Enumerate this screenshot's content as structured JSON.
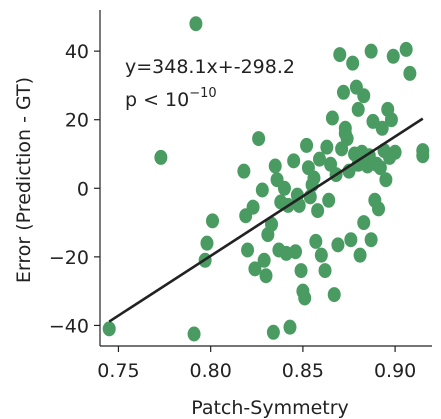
{
  "chart_data": {
    "type": "scatter",
    "xlabel": "Patch-Symmetry",
    "ylabel": "Error (Prediction - GT)",
    "xlim": [
      0.74,
      0.92
    ],
    "ylim": [
      -46,
      52
    ],
    "xticks": [
      0.75,
      0.8,
      0.85,
      0.9
    ],
    "xtick_labels": [
      "0.75",
      "0.80",
      "0.85",
      "0.90"
    ],
    "yticks": [
      -40,
      -20,
      0,
      20,
      40
    ],
    "ytick_labels": [
      "−40",
      "−20",
      "0",
      "20",
      "40"
    ],
    "grid": false,
    "annotation": {
      "equation": "y=348.1x+-298.2",
      "pvalue_text": "p < 10",
      "pvalue_exp": "−10"
    },
    "point_color": "#4a9b62",
    "line_color": "#222222",
    "fit_line": {
      "slope": 348.1,
      "intercept": -298.2,
      "x_range": [
        0.745,
        0.915
      ]
    },
    "points": [
      [
        0.745,
        -41
      ],
      [
        0.773,
        9
      ],
      [
        0.792,
        48
      ],
      [
        0.791,
        -42.5
      ],
      [
        0.797,
        -21
      ],
      [
        0.798,
        -16
      ],
      [
        0.801,
        -9.5
      ],
      [
        0.818,
        5
      ],
      [
        0.819,
        -8
      ],
      [
        0.82,
        -18
      ],
      [
        0.823,
        -5.5
      ],
      [
        0.824,
        -23.5
      ],
      [
        0.826,
        14.5
      ],
      [
        0.828,
        -0.5
      ],
      [
        0.829,
        -21
      ],
      [
        0.83,
        -25.5
      ],
      [
        0.831,
        -13.5
      ],
      [
        0.833,
        -10.5
      ],
      [
        0.834,
        -42
      ],
      [
        0.835,
        6.5
      ],
      [
        0.836,
        2.5
      ],
      [
        0.837,
        -18
      ],
      [
        0.838,
        -4
      ],
      [
        0.84,
        0
      ],
      [
        0.841,
        -19
      ],
      [
        0.842,
        -5
      ],
      [
        0.843,
        -40.5
      ],
      [
        0.845,
        8
      ],
      [
        0.846,
        -18.5
      ],
      [
        0.847,
        -2
      ],
      [
        0.848,
        -5
      ],
      [
        0.849,
        -24
      ],
      [
        0.85,
        -30
      ],
      [
        0.851,
        -32
      ],
      [
        0.852,
        12.5
      ],
      [
        0.853,
        6
      ],
      [
        0.854,
        -2.5
      ],
      [
        0.855,
        1
      ],
      [
        0.856,
        3
      ],
      [
        0.857,
        -15.5
      ],
      [
        0.858,
        -6.5
      ],
      [
        0.859,
        8.5
      ],
      [
        0.86,
        -19.5
      ],
      [
        0.862,
        -24
      ],
      [
        0.863,
        12
      ],
      [
        0.864,
        -3.5
      ],
      [
        0.865,
        7
      ],
      [
        0.866,
        20.5
      ],
      [
        0.867,
        -31
      ],
      [
        0.868,
        4
      ],
      [
        0.869,
        -16.5
      ],
      [
        0.87,
        39
      ],
      [
        0.871,
        11.5
      ],
      [
        0.872,
        28
      ],
      [
        0.873,
        17.5
      ],
      [
        0.874,
        14.5
      ],
      [
        0.875,
        5
      ],
      [
        0.876,
        -15
      ],
      [
        0.877,
        36.5
      ],
      [
        0.878,
        10
      ],
      [
        0.879,
        29.5
      ],
      [
        0.88,
        23
      ],
      [
        0.88,
        7
      ],
      [
        0.881,
        -19.5
      ],
      [
        0.882,
        10.5
      ],
      [
        0.883,
        27
      ],
      [
        0.884,
        8
      ],
      [
        0.885,
        6.5
      ],
      [
        0.886,
        9.5
      ],
      [
        0.887,
        40
      ],
      [
        0.888,
        19.5
      ],
      [
        0.889,
        -3.5
      ],
      [
        0.89,
        7
      ],
      [
        0.891,
        -6
      ],
      [
        0.892,
        6
      ],
      [
        0.893,
        17.5
      ],
      [
        0.894,
        11
      ],
      [
        0.895,
        2.5
      ],
      [
        0.896,
        23
      ],
      [
        0.897,
        9
      ],
      [
        0.898,
        20
      ],
      [
        0.899,
        38.5
      ],
      [
        0.9,
        10.5
      ],
      [
        0.906,
        40.5
      ],
      [
        0.908,
        33.5
      ],
      [
        0.915,
        11
      ],
      [
        0.915,
        9.5
      ],
      [
        0.887,
        -15
      ],
      [
        0.873,
        16
      ],
      [
        0.883,
        -10
      ]
    ]
  }
}
